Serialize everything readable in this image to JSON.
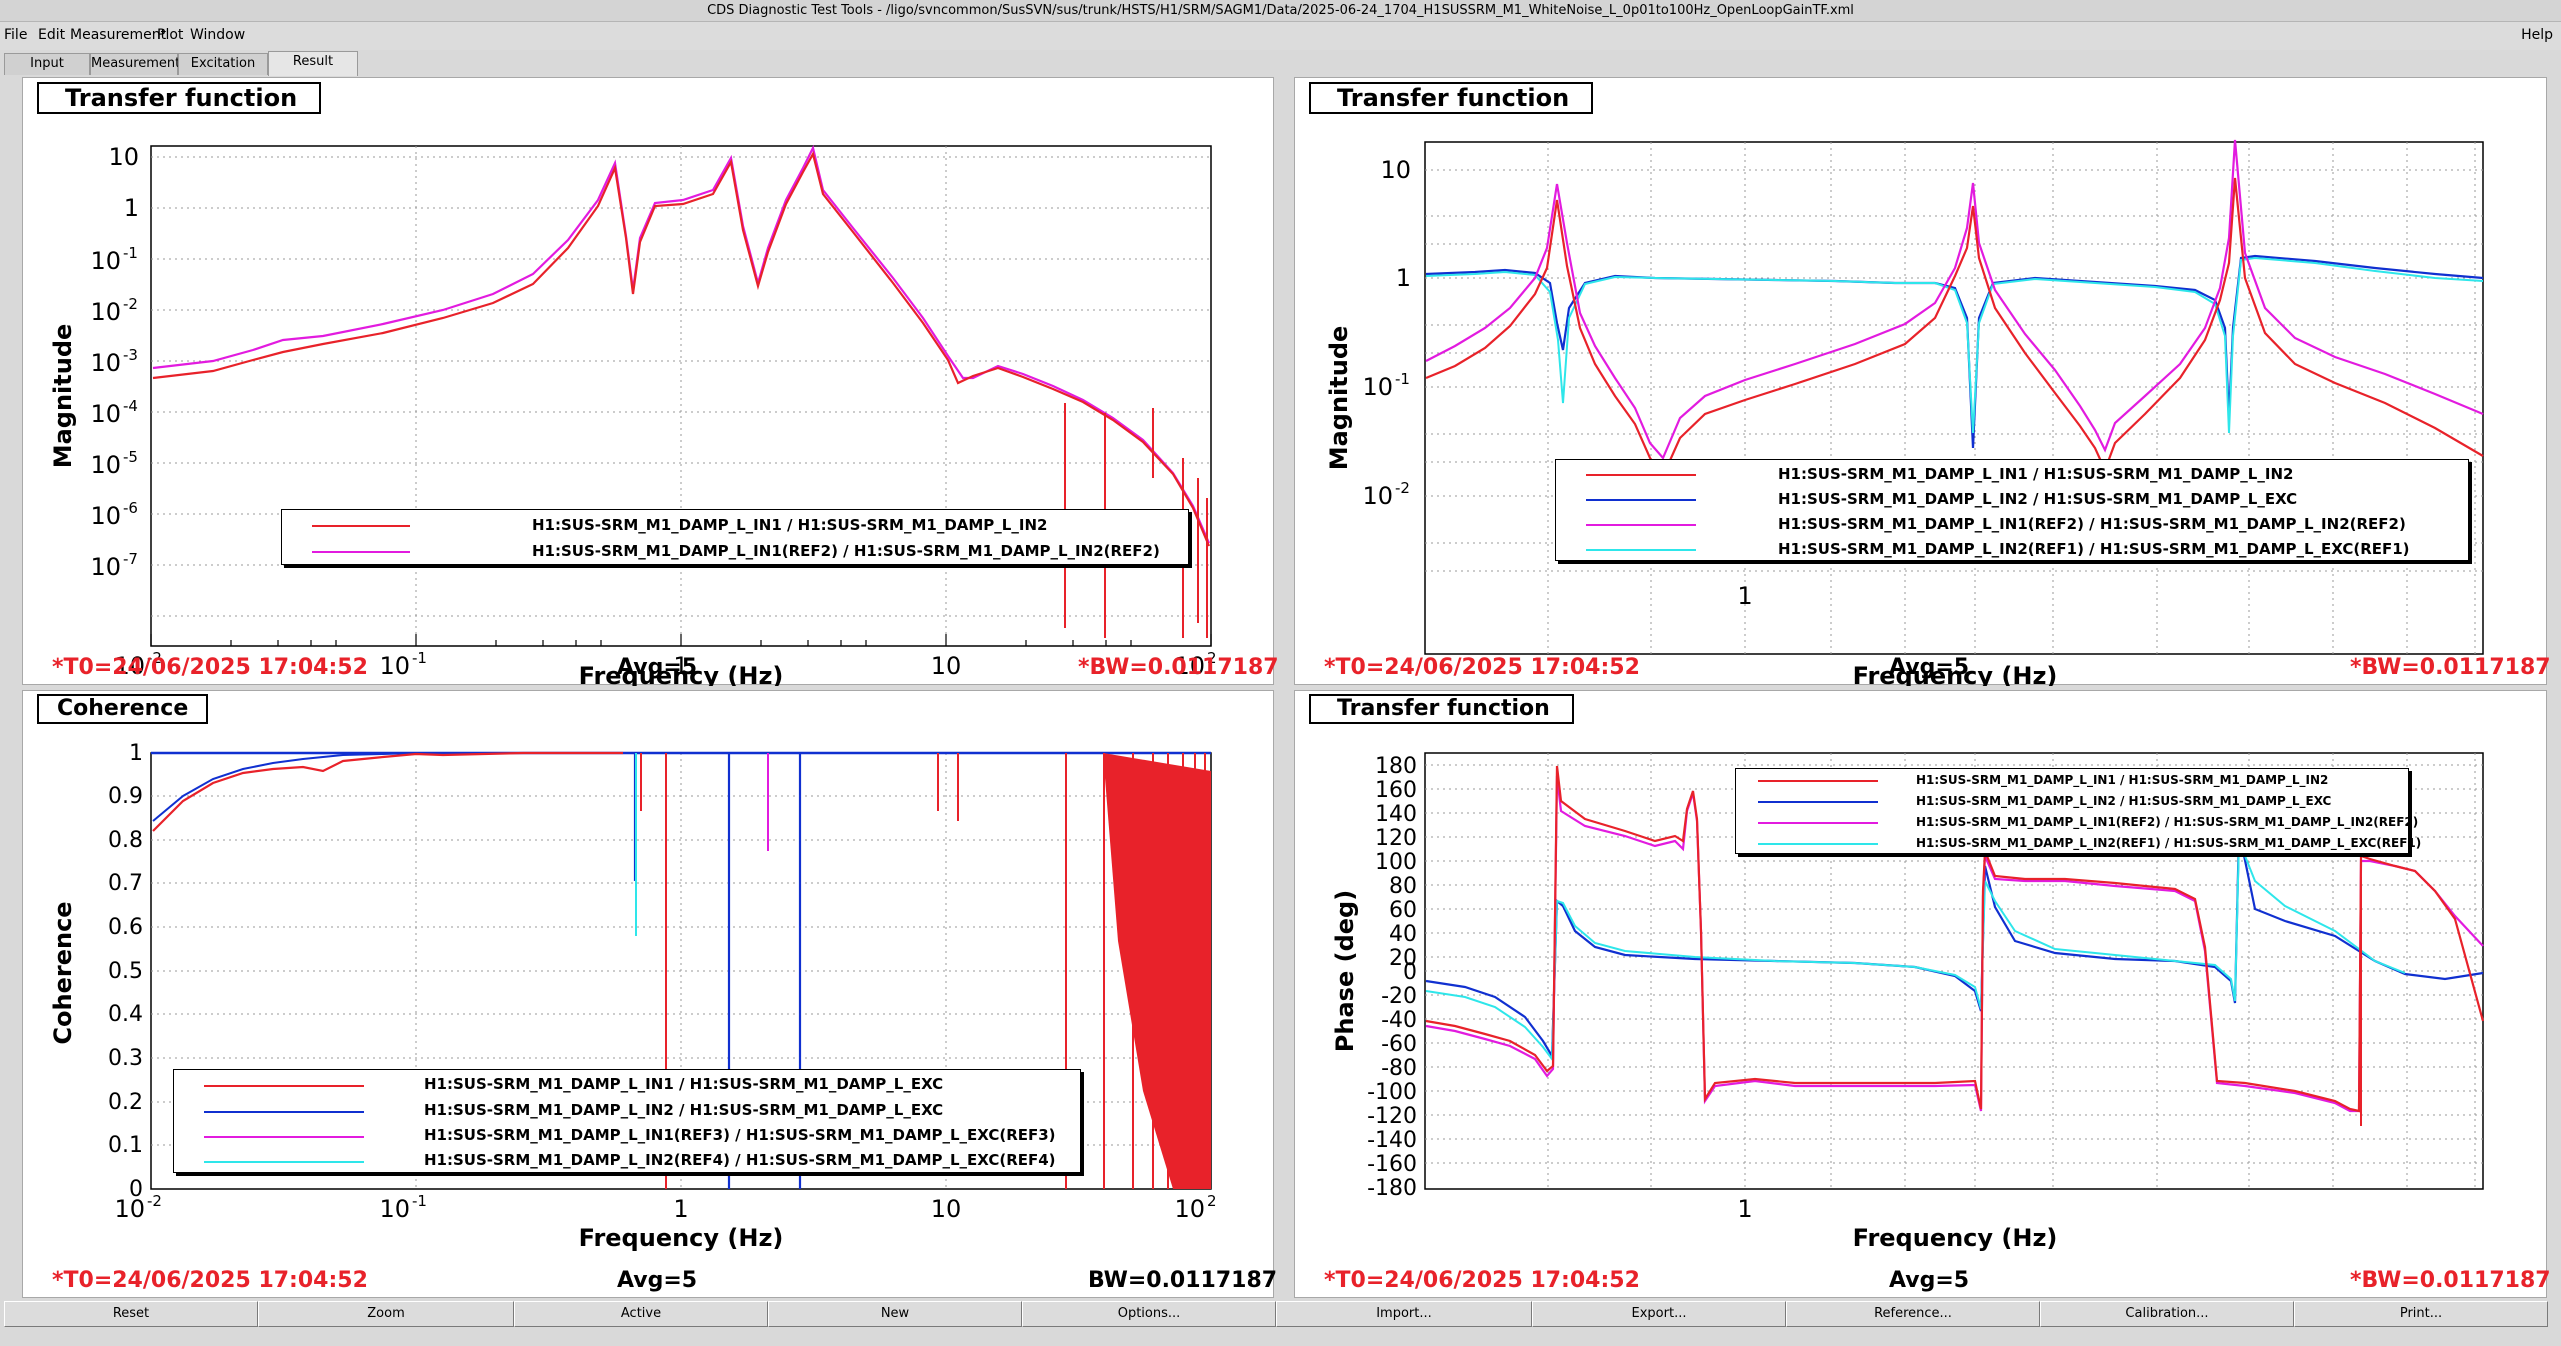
{
  "window_title": "CDS Diagnostic Test Tools - /ligo/svncommon/SusSVN/sus/trunk/HSTS/H1/SRM/SAGM1/Data/2025-06-24_1704_H1SUSSRM_M1_WhiteNoise_L_0p01to100Hz_OpenLoopGainTF.xml",
  "menu": [
    "File",
    "Edit",
    "Measurement",
    "Plot",
    "Window"
  ],
  "help": "Help",
  "tabs": [
    "Input",
    "Measurement",
    "Excitation",
    "Result"
  ],
  "active_tab": "Result",
  "panels": {
    "tl": {
      "title": "Transfer function",
      "ylabel": "Magnitude",
      "xlabel": "Frequency (Hz)",
      "footer_left": "*T0=24/06/2025 17:04:52",
      "footer_mid": "Avg=5",
      "footer_right": "*BW=0.0117187",
      "legend": [
        {
          "label": "H1:SUS-SRM_M1_DAMP_L_IN1 / H1:SUS-SRM_M1_DAMP_L_IN2",
          "color": "#e8222a"
        },
        {
          "label": "H1:SUS-SRM_M1_DAMP_L_IN1(REF2) / H1:SUS-SRM_M1_DAMP_L_IN2(REF2)",
          "color": "#e21bdf"
        }
      ]
    },
    "tr": {
      "title": "Transfer function",
      "ylabel": "Magnitude",
      "xlabel": "Frequency (Hz)",
      "footer_left": "*T0=24/06/2025 17:04:52",
      "footer_mid": "Avg=5",
      "footer_right": "*BW=0.0117187",
      "legend": [
        {
          "label": "H1:SUS-SRM_M1_DAMP_L_IN1 / H1:SUS-SRM_M1_DAMP_L_IN2",
          "color": "#e8222a"
        },
        {
          "label": "H1:SUS-SRM_M1_DAMP_L_IN2 / H1:SUS-SRM_M1_DAMP_L_EXC",
          "color": "#1030d0"
        },
        {
          "label": "H1:SUS-SRM_M1_DAMP_L_IN1(REF2) / H1:SUS-SRM_M1_DAMP_L_IN2(REF2)",
          "color": "#e21bdf"
        },
        {
          "label": "H1:SUS-SRM_M1_DAMP_L_IN2(REF1) / H1:SUS-SRM_M1_DAMP_L_EXC(REF1)",
          "color": "#2ee6ea"
        }
      ]
    },
    "bl": {
      "title": "Coherence",
      "ylabel": "Coherence",
      "xlabel": "Frequency (Hz)",
      "footer_left": "*T0=24/06/2025 17:04:52",
      "footer_mid": "Avg=5",
      "footer_right": "BW=0.0117187",
      "legend": [
        {
          "label": "H1:SUS-SRM_M1_DAMP_L_IN1 / H1:SUS-SRM_M1_DAMP_L_EXC",
          "color": "#e8222a"
        },
        {
          "label": "H1:SUS-SRM_M1_DAMP_L_IN2 / H1:SUS-SRM_M1_DAMP_L_EXC",
          "color": "#1030d0"
        },
        {
          "label": "H1:SUS-SRM_M1_DAMP_L_IN1(REF3) / H1:SUS-SRM_M1_DAMP_L_EXC(REF3)",
          "color": "#e21bdf"
        },
        {
          "label": "H1:SUS-SRM_M1_DAMP_L_IN2(REF4) / H1:SUS-SRM_M1_DAMP_L_EXC(REF4)",
          "color": "#2ee6ea"
        }
      ]
    },
    "br": {
      "title": "Transfer function",
      "ylabel": "Phase (deg)",
      "xlabel": "Frequency (Hz)",
      "footer_left": "*T0=24/06/2025 17:04:52",
      "footer_mid": "Avg=5",
      "footer_right": "*BW=0.0117187",
      "legend": [
        {
          "label": "H1:SUS-SRM_M1_DAMP_L_IN1 / H1:SUS-SRM_M1_DAMP_L_IN2",
          "color": "#e8222a"
        },
        {
          "label": "H1:SUS-SRM_M1_DAMP_L_IN2 / H1:SUS-SRM_M1_DAMP_L_EXC",
          "color": "#1030d0"
        },
        {
          "label": "H1:SUS-SRM_M1_DAMP_L_IN1(REF2) / H1:SUS-SRM_M1_DAMP_L_IN2(REF2)",
          "color": "#e21bdf"
        },
        {
          "label": "H1:SUS-SRM_M1_DAMP_L_IN2(REF1) / H1:SUS-SRM_M1_DAMP_L_EXC(REF1)",
          "color": "#2ee6ea"
        }
      ]
    }
  },
  "ticks": {
    "log_x_decades": [
      "10",
      "10",
      "1",
      "10",
      "10"
    ],
    "log_x_exps": [
      "-2",
      "-1",
      "",
      "",
      "2"
    ],
    "tl_y": [
      {
        "base": "10",
        "exp": ""
      },
      {
        "base": "1",
        "exp": ""
      },
      {
        "base": "10",
        "exp": "-1"
      },
      {
        "base": "10",
        "exp": "-2"
      },
      {
        "base": "10",
        "exp": "-3"
      },
      {
        "base": "10",
        "exp": "-4"
      },
      {
        "base": "10",
        "exp": "-5"
      },
      {
        "base": "10",
        "exp": "-6"
      },
      {
        "base": "10",
        "exp": "-7"
      }
    ],
    "tr_y": [
      {
        "base": "10",
        "exp": ""
      },
      {
        "base": "1",
        "exp": ""
      },
      {
        "base": "10",
        "exp": "-1"
      },
      {
        "base": "10",
        "exp": "-2"
      }
    ],
    "tr_x": [
      "1"
    ],
    "bl_y": [
      "1",
      "0.9",
      "0.8",
      "0.7",
      "0.6",
      "0.5",
      "0.4",
      "0.3",
      "0.2",
      "0.1",
      "0"
    ],
    "br_y": [
      "180",
      "160",
      "140",
      "120",
      "100",
      "80",
      "60",
      "40",
      "20",
      "0",
      "-20",
      "-40",
      "-60",
      "-80",
      "-100",
      "-120",
      "-140",
      "-160",
      "-180"
    ],
    "br_x": [
      "1"
    ]
  },
  "buttons": [
    "Reset",
    "Zoom",
    "Active",
    "New",
    "Options...",
    "Import...",
    "Export...",
    "Reference...",
    "Calibration...",
    "Print..."
  ]
}
